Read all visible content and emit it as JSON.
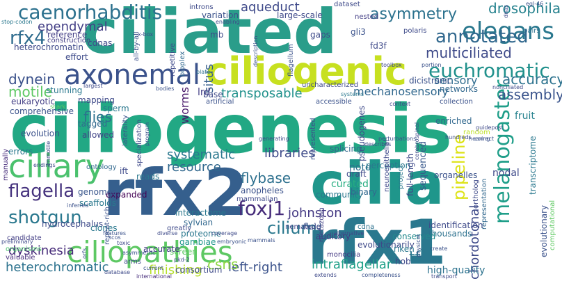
{
  "words": [
    {
      "text": "ciliogenesis",
      "color": "#22a884"
    },
    {
      "text": "ciliated",
      "color": "#2a9d8a"
    },
    {
      "text": "cilia",
      "color": "#1f968b"
    },
    {
      "text": "rfx2",
      "color": "#355f8d"
    },
    {
      "text": "rfx1",
      "color": "#2a788e"
    },
    {
      "text": "ciliogenic",
      "color": "#c7e020"
    },
    {
      "text": "axonemal",
      "color": "#3b528b"
    },
    {
      "text": "ciliary",
      "color": "#4ac16d"
    },
    {
      "text": "ciliopathies",
      "color": "#5dc863"
    },
    {
      "text": "caenorhabditis",
      "color": "#2c718e"
    },
    {
      "text": "elegans",
      "color": "#2a788e"
    },
    {
      "text": "euchromatic",
      "color": "#21918c"
    },
    {
      "text": "annotated",
      "color": "#31688e"
    },
    {
      "text": "multiciliated",
      "color": "#3e4a89"
    },
    {
      "text": "melanogaster",
      "color": "#1f9e89"
    },
    {
      "text": "drosophila",
      "color": "#26828e"
    },
    {
      "text": "asymmetry",
      "color": "#2c728e"
    },
    {
      "text": "aqueduct",
      "color": "#3e4989"
    },
    {
      "text": "rfx4",
      "color": "#2f6c8e"
    },
    {
      "text": "ependymal",
      "color": "#433e85"
    },
    {
      "text": "dynein",
      "color": "#3b528b"
    },
    {
      "text": "motile",
      "color": "#5dc863"
    },
    {
      "text": "flagella",
      "color": "#46337e"
    },
    {
      "text": "shotgun",
      "color": "#2a788e"
    },
    {
      "text": "foxj1",
      "color": "#472d7b"
    },
    {
      "text": "cilium",
      "color": "#2a788e"
    },
    {
      "text": "mechanosensory",
      "color": "#31688e"
    },
    {
      "text": "transposable",
      "color": "#21918c"
    },
    {
      "text": "accuracy",
      "color": "#2c728e"
    },
    {
      "text": "sensory",
      "color": "#2f6c8e"
    },
    {
      "text": "assembly",
      "color": "#3a548c"
    },
    {
      "text": "flies",
      "color": "#2c718e"
    },
    {
      "text": "worms",
      "color": "#48186a"
    },
    {
      "text": "resource",
      "color": "#31688e"
    },
    {
      "text": "systematic",
      "color": "#2a788e"
    },
    {
      "text": "flybase",
      "color": "#2d708e"
    },
    {
      "text": "libraries",
      "color": "#3e4a89"
    },
    {
      "text": "dyskinesia",
      "color": "#472c7a"
    },
    {
      "text": "heterochromatic",
      "color": "#2c728e"
    },
    {
      "text": "intraflagellar",
      "color": "#1fa088"
    },
    {
      "text": "left-right",
      "color": "#3b528b"
    },
    {
      "text": "csns",
      "color": "#8fd744"
    },
    {
      "text": "finishing",
      "color": "#b5de2b"
    },
    {
      "text": "pipeline",
      "color": "#dde318"
    },
    {
      "text": "chordotonal",
      "color": "#3e4a89"
    },
    {
      "text": "johnston",
      "color": "#443983"
    },
    {
      "text": "tfs",
      "color": "#2a788e"
    },
    {
      "text": "high-quality",
      "color": "#2c728e"
    },
    {
      "text": "situs",
      "color": "#355f8d"
    },
    {
      "text": "noto",
      "color": "#2c718e"
    },
    {
      "text": "curated",
      "color": "#27ad81"
    },
    {
      "text": "community",
      "color": "#2a788e"
    },
    {
      "text": "binary",
      "color": "#31688e"
    },
    {
      "text": "draft",
      "color": "#3e4989"
    },
    {
      "text": "perception",
      "color": "#2a788e"
    },
    {
      "text": "sequenced",
      "color": "#38588c"
    },
    {
      "text": "identification",
      "color": "#3e4a89"
    },
    {
      "text": "thousands",
      "color": "#2c718e"
    },
    {
      "text": "conserved",
      "color": "#238a8d"
    },
    {
      "text": "evolutionarily",
      "color": "#3e4989"
    },
    {
      "text": "cdna",
      "color": "#2c718e"
    },
    {
      "text": "monocilia",
      "color": "#443983"
    },
    {
      "text": "riken",
      "color": "#2a788e"
    },
    {
      "text": "auditory",
      "color": "#443a83"
    },
    {
      "text": "metazoan",
      "color": "#424086"
    },
    {
      "text": "nematode",
      "color": "#414487"
    },
    {
      "text": "fluid",
      "color": "#3b528b"
    },
    {
      "text": "interactome",
      "color": "#2a788e"
    },
    {
      "text": "sylvian",
      "color": "#31688e"
    },
    {
      "text": "proteome",
      "color": "#2a788e"
    },
    {
      "text": "gambiae",
      "color": "#1f968b"
    },
    {
      "text": "screen",
      "color": "#5ec962"
    },
    {
      "text": "accurate",
      "color": "#443983"
    },
    {
      "text": "consortium",
      "color": "#3e4a89"
    },
    {
      "text": "anopheles",
      "color": "#3b528b"
    },
    {
      "text": "mammalian",
      "color": "#3e4989"
    },
    {
      "text": "scaffolds",
      "color": "#2a788e"
    },
    {
      "text": "expanded",
      "color": "#440154"
    },
    {
      "text": "genomes",
      "color": "#39568c"
    },
    {
      "text": "hydrocephalus",
      "color": "#3e4a89"
    },
    {
      "text": "clones",
      "color": "#2a788e"
    },
    {
      "text": "repeat-rich",
      "color": "#3b528b"
    },
    {
      "text": "greatly",
      "color": "#3e4989"
    },
    {
      "text": "candidate",
      "color": "#433e85"
    },
    {
      "text": "organisms",
      "color": "#4ac16d"
    },
    {
      "text": "valuable",
      "color": "#472d7b"
    },
    {
      "text": "arms",
      "color": "#3e4a89"
    },
    {
      "text": "international",
      "color": "#472d7b"
    },
    {
      "text": "heterochromatin",
      "color": "#3e4989"
    },
    {
      "text": "cdnas",
      "color": "#3e4989"
    },
    {
      "text": "reference",
      "color": "#433e85"
    },
    {
      "text": "construction",
      "color": "#433e85"
    },
    {
      "text": "effort",
      "color": "#3e4a89"
    },
    {
      "text": "eukaryotic",
      "color": "#433e85"
    },
    {
      "text": "comprehensive",
      "color": "#3b528b"
    },
    {
      "text": "stunning",
      "color": "#2a788e"
    },
    {
      "text": "mapping",
      "color": "#3e4989"
    },
    {
      "text": "sperm",
      "color": "#2a788e"
    },
    {
      "text": "tagged",
      "color": "#31688e"
    },
    {
      "text": "allowed",
      "color": "#414487"
    },
    {
      "text": "evolution",
      "color": "#3b528b"
    },
    {
      "text": "manually",
      "color": "#472d7b"
    },
    {
      "text": "errors",
      "color": "#2a788e"
    },
    {
      "text": "ontology",
      "color": "#31688e"
    },
    {
      "text": "ift",
      "color": "#3e4a89"
    },
    {
      "text": "reads",
      "color": "#2a788e"
    },
    {
      "text": "laterality",
      "color": "#3b528b"
    },
    {
      "text": "specialization",
      "color": "#3e4989"
    },
    {
      "text": "lrd",
      "color": "#433e85"
    },
    {
      "text": "base",
      "color": "#3e4a89"
    },
    {
      "text": "networks",
      "color": "#31688e"
    },
    {
      "text": "collection",
      "color": "#3b528b"
    },
    {
      "text": "fruit",
      "color": "#26828e"
    },
    {
      "text": "enriched",
      "color": "#31688e"
    },
    {
      "text": "nodal",
      "color": "#3e4989"
    },
    {
      "text": "organelles",
      "color": "#3b528b"
    },
    {
      "text": "full-length",
      "color": "#3e4989"
    },
    {
      "text": "splicing",
      "color": "#31688e"
    },
    {
      "text": "pseudogenes",
      "color": "#3e4a89"
    },
    {
      "text": "transcriptome",
      "color": "#2a788e"
    },
    {
      "text": "evolutionary",
      "color": "#3b528b"
    },
    {
      "text": "computational",
      "color": "#5ec962"
    },
    {
      "text": "ortholog",
      "color": "#3e4989"
    },
    {
      "text": "representation",
      "color": "#31688e"
    },
    {
      "text": "project",
      "color": "#2a788e"
    },
    {
      "text": "cerebrospinal",
      "color": "#3e4a89"
    },
    {
      "text": "neuroepithelial",
      "color": "#3e4989"
    },
    {
      "text": "represented",
      "color": "#3b528b"
    },
    {
      "text": "gaps",
      "color": "#3e4a89"
    },
    {
      "text": "gli3",
      "color": "#3b528b"
    },
    {
      "text": "fd3f",
      "color": "#3e4989"
    },
    {
      "text": "polaris",
      "color": "#3e4a89"
    },
    {
      "text": "pairs",
      "color": "#2c718e"
    },
    {
      "text": "dicistronic",
      "color": "#3b528b"
    },
    {
      "text": "uncharacterized",
      "color": "#3e4989"
    },
    {
      "text": "flagellum",
      "color": "#3b528b"
    },
    {
      "text": "introns",
      "color": "#3e4a89"
    },
    {
      "text": "variation",
      "color": "#3b528b"
    },
    {
      "text": "large-scale",
      "color": "#3e4989"
    },
    {
      "text": "nested",
      "color": "#433e85"
    },
    {
      "text": "dataset",
      "color": "#3e4a89"
    },
    {
      "text": "repetitive",
      "color": "#3e4989"
    },
    {
      "text": "bioplex",
      "color": "#31688e"
    },
    {
      "text": "mb",
      "color": "#3e4a89"
    },
    {
      "text": "all-by-all",
      "color": "#3b528b"
    },
    {
      "text": "x-box",
      "color": "#3e4989"
    },
    {
      "text": "stop-codon",
      "color": "#2a788e"
    },
    {
      "text": "enabling",
      "color": "#3e4a89"
    },
    {
      "text": "description",
      "color": "#3b528b"
    },
    {
      "text": "toolbox",
      "color": "#3e4989"
    },
    {
      "text": "portion",
      "color": "#3b528b"
    },
    {
      "text": "largest",
      "color": "#3e4a89"
    },
    {
      "text": "plate",
      "color": "#2c718e"
    },
    {
      "text": "bodies",
      "color": "#3b528b"
    },
    {
      "text": "systems",
      "color": "#2a788e"
    },
    {
      "text": "context",
      "color": "#3e4989"
    },
    {
      "text": "accessible",
      "color": "#3b528b"
    },
    {
      "text": "nonciliated",
      "color": "#3e4a89"
    },
    {
      "text": "artificial",
      "color": "#3b528b"
    },
    {
      "text": "shark",
      "color": "#5ec962"
    },
    {
      "text": "guidepost",
      "color": "#3e4989"
    },
    {
      "text": "correct",
      "color": "#3b528b"
    },
    {
      "text": "hundreds",
      "color": "#3e4a89"
    },
    {
      "text": "hearing",
      "color": "#3b528b"
    },
    {
      "text": "random",
      "color": "#bddf26"
    },
    {
      "text": "generating",
      "color": "#3e4989"
    },
    {
      "text": "perturbations",
      "color": "#3b528b"
    },
    {
      "text": "describes",
      "color": "#3e4a89"
    },
    {
      "text": "program",
      "color": "#3b528b"
    },
    {
      "text": "endings",
      "color": "#3e4989"
    },
    {
      "text": "inferred",
      "color": "#3b528b"
    },
    {
      "text": "preliminary",
      "color": "#3e4a89"
    },
    {
      "text": "features",
      "color": "#3b528b"
    },
    {
      "text": "alternative",
      "color": "#3e4989"
    },
    {
      "text": "mammals",
      "color": "#3b528b"
    },
    {
      "text": "coverage",
      "color": "#3e4a89"
    },
    {
      "text": "embryonic",
      "color": "#3b528b"
    },
    {
      "text": "pkd-2",
      "color": "#3e4989"
    },
    {
      "text": "current",
      "color": "#3b528b"
    },
    {
      "text": "database",
      "color": "#3e4a89"
    },
    {
      "text": "asymmetric",
      "color": "#3b528b"
    },
    {
      "text": "extends",
      "color": "#3e4989"
    },
    {
      "text": "completeness",
      "color": "#3b528b"
    },
    {
      "text": "transport",
      "color": "#3e4a89"
    },
    {
      "text": "create",
      "color": "#3b528b"
    },
    {
      "text": "hob",
      "color": "#3e4989"
    },
    {
      "text": "physical",
      "color": "#3b528b"
    },
    {
      "text": "immotile",
      "color": "#3e4a89"
    },
    {
      "text": "egl-46",
      "color": "#3b528b"
    },
    {
      "text": "dnas",
      "color": "#3e4989"
    },
    {
      "text": "scos",
      "color": "#3b528b"
    },
    {
      "text": "diverse",
      "color": "#3e4a89"
    },
    {
      "text": "orfs",
      "color": "#3b528b"
    },
    {
      "text": "toxic",
      "color": "#3e4989"
    }
  ]
}
